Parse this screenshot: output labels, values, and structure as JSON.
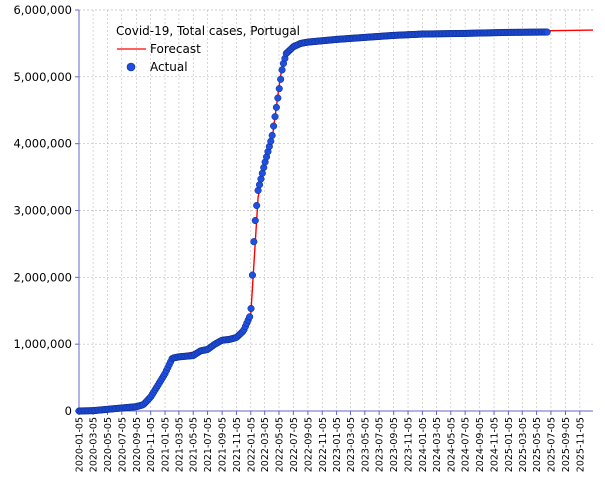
{
  "chart_data": {
    "type": "line",
    "title": "Covid-19, Total cases, Portugal",
    "ylim": [
      0,
      6000000
    ],
    "y_ticks": [
      0,
      1000000,
      2000000,
      3000000,
      4000000,
      5000000,
      6000000
    ],
    "y_tick_labels": [
      "0",
      "1,000,000",
      "2,000,000",
      "3,000,000",
      "4,000,000",
      "5,000,000",
      "6,000,000"
    ],
    "x_range": [
      "2020-01-05",
      "2025-12-31"
    ],
    "x_tick_labels": [
      "2020-01-05",
      "2020-03-05",
      "2020-05-05",
      "2020-07-05",
      "2020-09-05",
      "2020-11-05",
      "2021-01-05",
      "2021-03-05",
      "2021-05-05",
      "2021-07-05",
      "2021-09-05",
      "2021-11-05",
      "2022-01-05",
      "2022-03-05",
      "2022-05-05",
      "2022-07-05",
      "2022-09-05",
      "2022-11-05",
      "2023-01-05",
      "2023-03-05",
      "2023-05-05",
      "2023-07-05",
      "2023-09-05",
      "2023-11-05",
      "2024-01-05",
      "2024-03-05",
      "2024-05-05",
      "2024-07-05",
      "2024-09-05",
      "2024-11-05",
      "2025-01-05",
      "2025-03-05",
      "2025-05-05",
      "2025-07-05",
      "2025-09-05",
      "2025-11-05"
    ],
    "grid": "horizontal dashed",
    "legend_position": "top-left",
    "colors": {
      "forecast": "#ff0000",
      "actual": "#1f4fe0",
      "axis": "#6666cc",
      "grid": "#bbbbbb"
    },
    "series": [
      {
        "name": "Forecast",
        "style": "line",
        "x": [
          "2020-01-05",
          "2020-03-05",
          "2020-05-05",
          "2020-07-05",
          "2020-09-05",
          "2020-10-05",
          "2020-11-05",
          "2020-12-05",
          "2021-01-05",
          "2021-02-05",
          "2021-03-05",
          "2021-04-05",
          "2021-05-05",
          "2021-06-05",
          "2021-07-05",
          "2021-08-05",
          "2021-09-05",
          "2021-10-05",
          "2021-11-05",
          "2021-12-05",
          "2022-01-05",
          "2022-01-20",
          "2022-02-05",
          "2022-03-05",
          "2022-04-05",
          "2022-05-05",
          "2022-05-20",
          "2022-06-05",
          "2022-07-05",
          "2022-08-05",
          "2022-09-05",
          "2022-11-05",
          "2023-01-05",
          "2023-05-05",
          "2023-09-05",
          "2024-01-05",
          "2024-07-05",
          "2025-01-05",
          "2025-07-05",
          "2025-12-31"
        ],
        "y": [
          0,
          10000,
          25000,
          45000,
          65000,
          90000,
          190000,
          350000,
          520000,
          800000,
          830000,
          860000,
          880000,
          930000,
          940000,
          1000000,
          1060000,
          1080000,
          1100000,
          1180000,
          1450000,
          2300000,
          3200000,
          3650000,
          4050000,
          4850000,
          5200000,
          5330000,
          5420000,
          5460000,
          5480000,
          5500000,
          5520000,
          5560000,
          5600000,
          5620000,
          5650000,
          5670000,
          5690000,
          5700000
        ]
      },
      {
        "name": "Actual",
        "style": "markers",
        "x": [
          "2020-01-05",
          "2020-03-05",
          "2020-05-05",
          "2020-07-05",
          "2020-09-05",
          "2020-10-05",
          "2020-11-05",
          "2020-12-05",
          "2021-01-05",
          "2021-02-05",
          "2021-03-05",
          "2021-04-05",
          "2021-05-05",
          "2021-06-05",
          "2021-07-05",
          "2021-08-05",
          "2021-09-05",
          "2021-10-05",
          "2021-11-05",
          "2021-12-05",
          "2022-01-05",
          "2022-01-20",
          "2022-02-05",
          "2022-03-05",
          "2022-04-05",
          "2022-05-05",
          "2022-05-20",
          "2022-06-05",
          "2022-07-05",
          "2022-08-05",
          "2022-09-05",
          "2022-11-05",
          "2023-01-05",
          "2023-05-05",
          "2023-09-05",
          "2024-01-05",
          "2024-07-05",
          "2025-01-05",
          "2025-06-20"
        ],
        "y": [
          0,
          5000,
          25000,
          45000,
          65000,
          95000,
          210000,
          380000,
          560000,
          790000,
          810000,
          820000,
          830000,
          900000,
          920000,
          1000000,
          1060000,
          1070000,
          1100000,
          1200000,
          1450000,
          2700000,
          3300000,
          3700000,
          4100000,
          4800000,
          5150000,
          5350000,
          5450000,
          5500000,
          5520000,
          5540000,
          5560000,
          5590000,
          5620000,
          5640000,
          5650000,
          5665000,
          5670000
        ]
      }
    ]
  }
}
